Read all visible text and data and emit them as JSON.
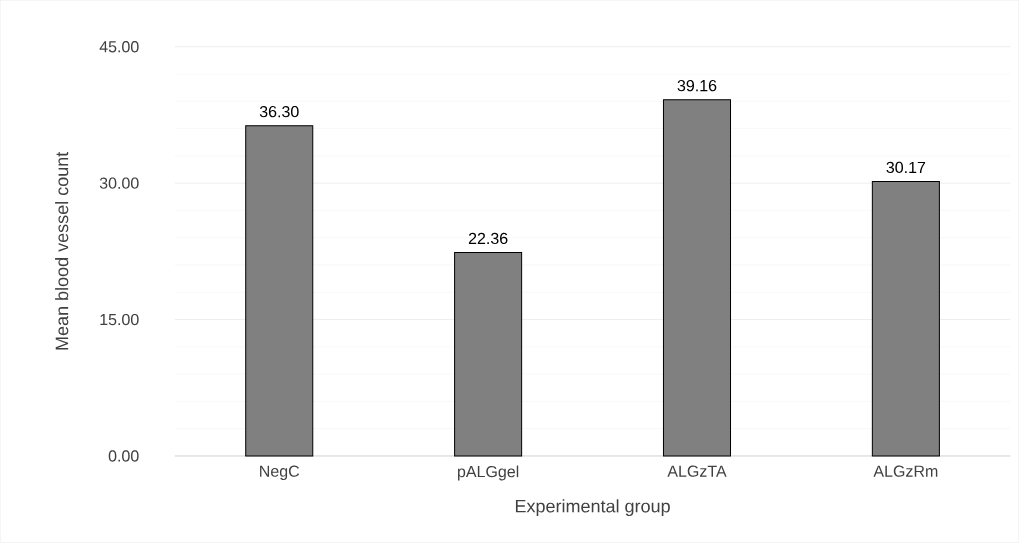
{
  "chart_data": {
    "type": "bar",
    "xlabel": "Experimental group",
    "ylabel": "Mean blood vessel count",
    "categories": [
      "NegC",
      "pALGgel",
      "ALGzTA",
      "ALGzRm"
    ],
    "values": [
      36.3,
      22.36,
      39.16,
      30.17
    ],
    "value_labels": [
      "36.30",
      "22.36",
      "39.16",
      "30.17"
    ],
    "color": "#808080",
    "ylim": [
      0,
      45
    ],
    "yticks": [
      {
        "value": 0,
        "label": "0.00"
      },
      {
        "value": 15,
        "label": "15.00"
      },
      {
        "value": 30,
        "label": "30.00"
      },
      {
        "value": 45,
        "label": "45.00"
      }
    ],
    "grid": true
  }
}
